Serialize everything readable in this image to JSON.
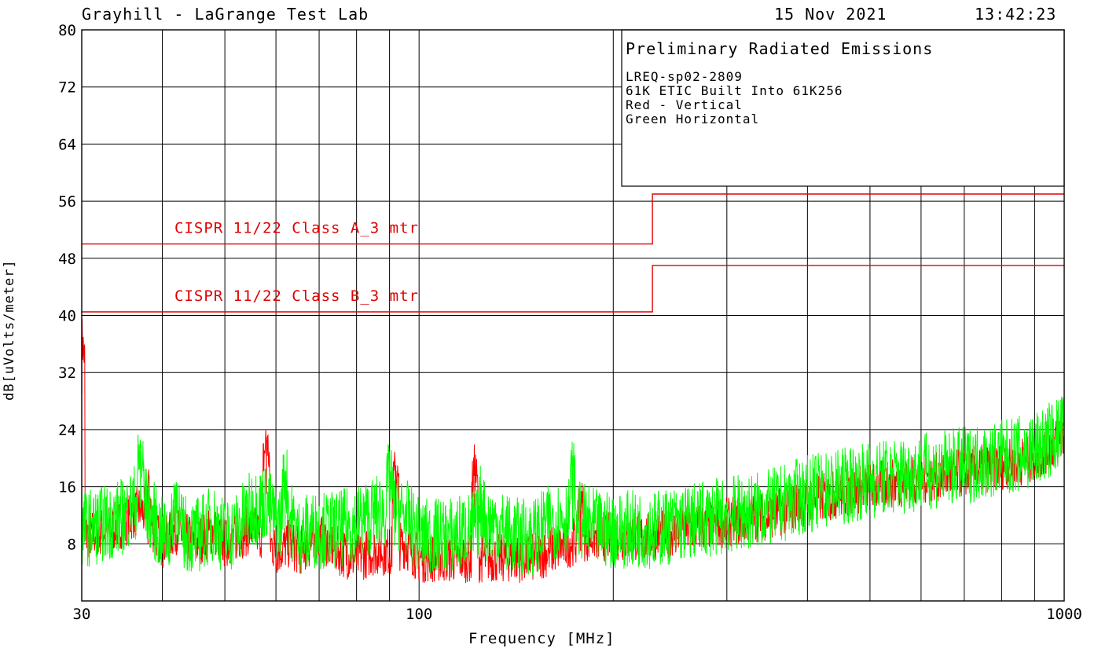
{
  "header": {
    "lab": "Grayhill - LaGrange Test Lab",
    "date": "15 Nov 2021",
    "time": "13:42:23"
  },
  "notes": {
    "title": "Preliminary Radiated Emissions",
    "lines": [
      "LREQ-sp02-2809",
      "61K ETIC Built Into 61K256",
      "Red - Vertical",
      "Green Horizontal"
    ]
  },
  "colors": {
    "vertical": "#ff0000",
    "horizontal": "#00ff00",
    "limit": "#e00000",
    "grid": "#000000"
  },
  "chart_data": {
    "type": "line",
    "xlabel": "Frequency [MHz]",
    "ylabel": "dB[uVolts/meter]",
    "x_scale": "log",
    "xlim": [
      30,
      1000
    ],
    "ylim": [
      0,
      80
    ],
    "x_ticks": [
      "30",
      "100",
      "1000"
    ],
    "y_ticks": [
      "8",
      "16",
      "24",
      "32",
      "40",
      "48",
      "56",
      "64",
      "72",
      "80"
    ],
    "grid": true,
    "limits": [
      {
        "name": "CISPR 11/22 Class A_3 mtr",
        "points": [
          [
            30,
            50
          ],
          [
            230,
            50
          ],
          [
            230,
            57
          ],
          [
            1000,
            57
          ]
        ]
      },
      {
        "name": "CISPR 11/22 Class B_3 mtr",
        "points": [
          [
            30,
            40.5
          ],
          [
            230,
            40.5
          ],
          [
            230,
            47
          ],
          [
            1000,
            47
          ]
        ]
      }
    ],
    "series": [
      {
        "name": "Red - Vertical",
        "x": [
          30,
          33,
          35,
          37,
          40,
          42,
          45,
          48,
          50,
          52,
          55,
          58,
          60,
          63,
          65,
          68,
          70,
          75,
          80,
          85,
          90,
          95,
          100,
          110,
          120,
          130,
          140,
          150,
          160,
          170,
          180,
          190,
          200,
          230,
          260,
          300,
          350,
          400,
          450,
          500,
          600,
          700,
          800,
          900,
          1000
        ],
        "y": [
          9,
          10,
          11,
          13,
          8,
          10,
          8,
          10,
          8,
          9,
          10,
          9,
          7,
          8,
          7,
          8,
          9,
          7,
          6,
          7,
          7,
          8,
          6,
          6,
          6,
          6,
          6,
          6,
          7,
          8,
          9,
          9,
          9,
          9,
          10,
          11,
          12,
          14,
          15,
          16,
          17,
          18,
          19,
          20,
          23
        ],
        "peaks": [
          [
            30,
            37
          ],
          [
            38,
            16
          ],
          [
            58,
            23
          ],
          [
            92,
            19
          ],
          [
            122,
            19
          ],
          [
            178,
            15
          ]
        ]
      },
      {
        "name": "Green Horizontal",
        "x": [
          30,
          33,
          35,
          37,
          40,
          42,
          45,
          48,
          50,
          52,
          55,
          58,
          60,
          63,
          65,
          68,
          70,
          75,
          80,
          85,
          90,
          95,
          100,
          110,
          120,
          130,
          140,
          150,
          160,
          170,
          180,
          190,
          200,
          230,
          260,
          300,
          350,
          400,
          450,
          500,
          600,
          700,
          800,
          900,
          1000
        ],
        "y": [
          10,
          11,
          12,
          15,
          9,
          10,
          9,
          11,
          9,
          10,
          13,
          14,
          11,
          12,
          9,
          10,
          10,
          10,
          11,
          12,
          13,
          12,
          9,
          9,
          10,
          11,
          9,
          9,
          11,
          12,
          11,
          10,
          10,
          10,
          11,
          12,
          13,
          15,
          16,
          17,
          18,
          19,
          20,
          21,
          24
        ],
        "peaks": [
          [
            37,
            21
          ],
          [
            42,
            16
          ],
          [
            62,
            18
          ],
          [
            90,
            18
          ],
          [
            125,
            15
          ],
          [
            173,
            18
          ]
        ]
      }
    ]
  }
}
